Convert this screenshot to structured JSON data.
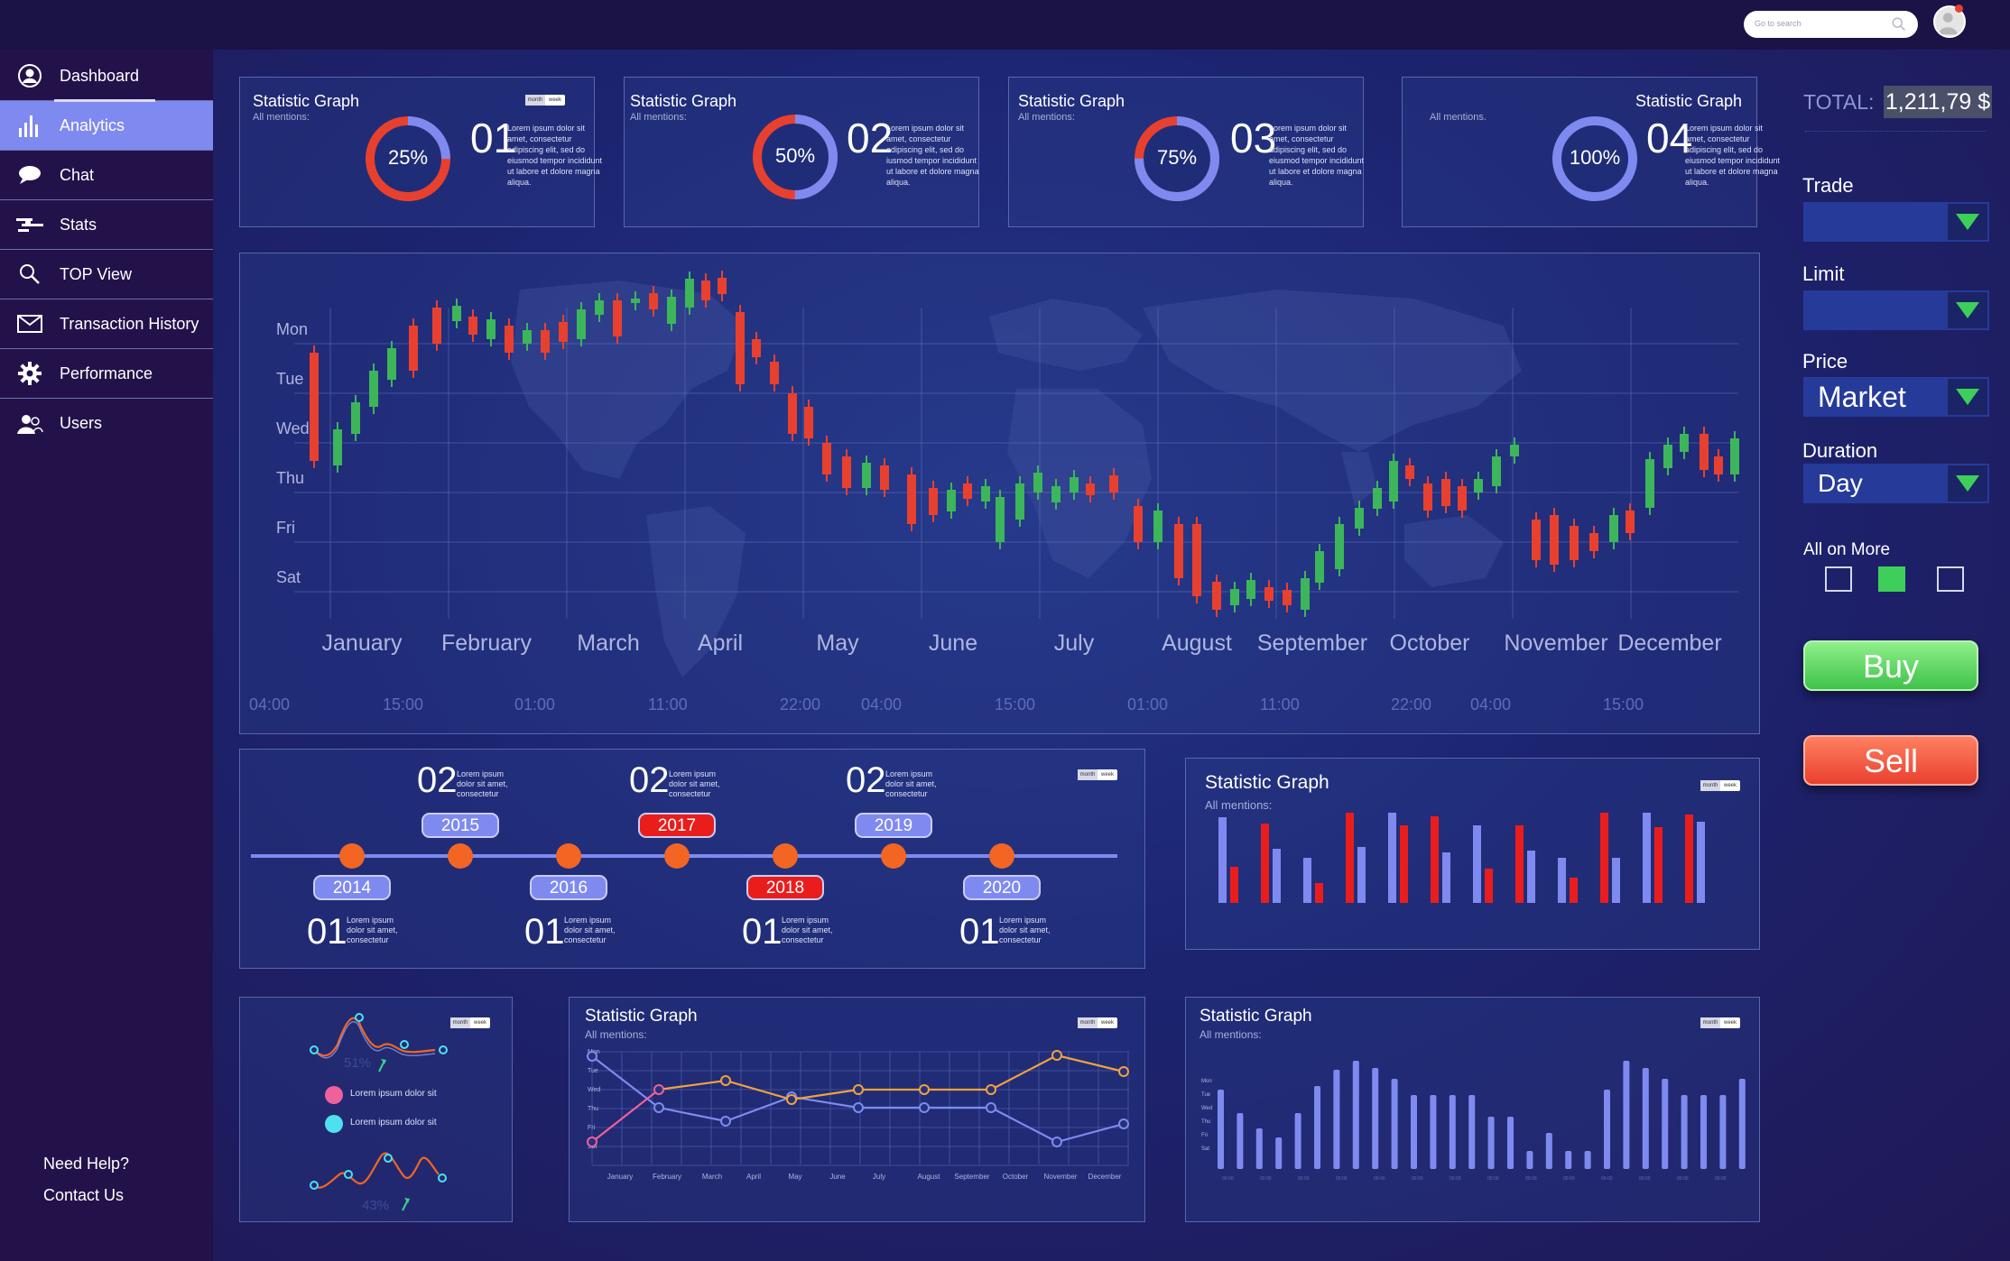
{
  "topbar": {
    "search_placeholder": "Go to search",
    "search_icon": "search-icon",
    "avatar_icon": "user-avatar-icon"
  },
  "sidebar": {
    "items": [
      {
        "label": "Dashboard",
        "icon": "user-circle-icon"
      },
      {
        "label": "Analytics",
        "icon": "bar-chart-icon"
      },
      {
        "label": "Chat",
        "icon": "speech-bubble-icon"
      },
      {
        "label": "Stats",
        "icon": "stats-icon"
      },
      {
        "label": "TOP View",
        "icon": "magnifier-icon"
      },
      {
        "label": "Transaction History",
        "icon": "envelope-icon"
      },
      {
        "label": "Performance",
        "icon": "gear-icon"
      },
      {
        "label": "Users",
        "icon": "users-icon"
      }
    ],
    "active": "Analytics",
    "help": "Need Help?",
    "contact": "Contact Us"
  },
  "stat_cards": [
    {
      "title": "Statistic Graph",
      "sub": "All mentions:",
      "num": "01",
      "pct": "25%",
      "pct_value": 25,
      "text": "Lorem ipsum dolor sit amet, consectetur adipiscing elit, sed do eiusmod tempor incididunt ut labore et dolore magna aliqua.",
      "tab_a": "month",
      "tab_b": "week"
    },
    {
      "title": "Statistic Graph",
      "sub": "All mentions:",
      "num": "02",
      "pct": "50%",
      "pct_value": 50,
      "text": "Lorem ipsum dolor sit amet, consectetur adipiscing elit, sed do iusmod tempor incididunt ut labore et dolore magna aliqua."
    },
    {
      "title": "Statistic Graph",
      "sub": "All mentions:",
      "num": "03",
      "pct": "75%",
      "pct_value": 75,
      "text": "Lorem ipsum dolor sit amet, consectetur adipiscing elit, sed do eiusmod tempor incididunt ut labore et dolore magna aliqua."
    },
    {
      "title": "Statistic Graph",
      "sub": "All mentions.",
      "num": "04",
      "pct": "100%",
      "pct_value": 100,
      "text": "Lorem ipsum dolor sit amet, consectetur adipiscing elit, sed do eiusmod tempor incididunt ut labore et dolore magna aliqua."
    }
  ],
  "candle_chart": {
    "days": [
      "Mon",
      "Tue",
      "Wed",
      "Thu",
      "Fri",
      "Sat"
    ],
    "months": [
      "January",
      "February",
      "March",
      "April",
      "May",
      "June",
      "July",
      "August",
      "September",
      "October",
      "November",
      "December"
    ],
    "times": [
      "04:00",
      "15:00",
      "01:00",
      "11:00",
      "22:00",
      "04:00",
      "15:00",
      "01:00",
      "11:00",
      "22:00",
      "04:00",
      "15:00"
    ]
  },
  "timeline": {
    "tab_a": "month",
    "tab_b": "week",
    "top": [
      {
        "num": "02",
        "year": "2015",
        "highlight": false
      },
      {
        "num": "02",
        "year": "2017",
        "highlight": true
      },
      {
        "num": "02",
        "year": "2019",
        "highlight": false
      }
    ],
    "bottom": [
      {
        "num": "01",
        "year": "2014",
        "highlight": false
      },
      {
        "num": "01",
        "year": "2016",
        "highlight": false
      },
      {
        "num": "01",
        "year": "2018",
        "highlight": true
      },
      {
        "num": "01",
        "year": "2020",
        "highlight": false
      }
    ],
    "text": "Lorem ipsum dolor sit amet, consectetur"
  },
  "bar_panel": {
    "title": "Statistic Graph",
    "sub": "All mentions:",
    "tab_a": "month",
    "tab_b": "week"
  },
  "wave_panel": {
    "pct_top": "51%",
    "pct_bottom": "43%",
    "legend": [
      "Lorem ipsum dolor sit",
      "Lorem ipsum dolor sit"
    ],
    "tab_a": "month",
    "tab_b": "week"
  },
  "line_panel": {
    "title": "Statistic Graph",
    "sub": "All mentions:",
    "tab_a": "month",
    "tab_b": "week",
    "ylabels": [
      "Mon",
      "Tue",
      "Wed",
      "Thu",
      "Fri",
      "Sat"
    ],
    "xlabels": [
      "January",
      "February",
      "March",
      "April",
      "May",
      "June",
      "July",
      "August",
      "September",
      "October",
      "November",
      "December"
    ]
  },
  "col_panel": {
    "title": "Statistic Graph",
    "sub": "All mentions:",
    "tab_a": "month",
    "tab_b": "week",
    "ylabels": [
      "Mon",
      "Tue",
      "Wed",
      "Thu",
      "Fri",
      "Sat"
    ]
  },
  "trade": {
    "total_label": "TOTAL:",
    "total_value": "1,211,79 $",
    "trade_label": "Trade",
    "trade_value": "",
    "limit_label": "Limit",
    "limit_value": "",
    "price_label": "Price",
    "price_value": "Market",
    "duration_label": "Duration",
    "duration_value": "Day",
    "all_label": "All on More",
    "buy": "Buy",
    "sell": "Sell"
  },
  "colors": {
    "accent_red": "#e8402f",
    "accent_blue": "#7f8af0",
    "orange": "#f26522",
    "buy_green": "#4ecb5a",
    "sell_red": "#ea4b35"
  }
}
